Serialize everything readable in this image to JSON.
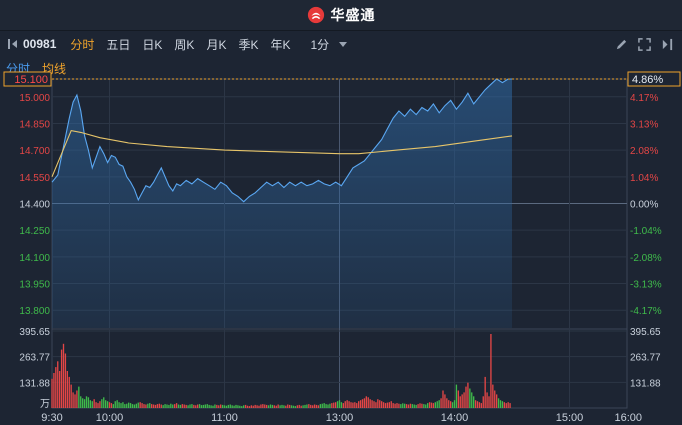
{
  "brand": {
    "name": "华盛通"
  },
  "toolbar": {
    "code": "00981",
    "tabs": [
      "分时",
      "五日",
      "日K",
      "周K",
      "月K",
      "季K",
      "年K"
    ],
    "active_tab": "分时",
    "period": "1分"
  },
  "subtabs": {
    "time_share": "分时",
    "avg_line": "均线"
  },
  "chart_data": {
    "type": "line",
    "prev_close": 14.4,
    "current_price": "15.100",
    "current_change": "4.86%",
    "price_ticks": [
      "15.000",
      "14.850",
      "14.700",
      "14.550",
      "14.400",
      "14.250",
      "14.100",
      "13.950",
      "13.800"
    ],
    "pct_ticks": [
      "4.17%",
      "3.13%",
      "2.08%",
      "1.04%",
      "0.00%",
      "-1.04%",
      "-2.08%",
      "-3.13%",
      "-4.17%"
    ],
    "time_labels": [
      "9:30",
      "10:00",
      "11:00",
      "13:00",
      "14:00",
      "15:00",
      "16:00"
    ],
    "volume_ticks": [
      "395.65",
      "263.77",
      "131.88"
    ],
    "volume_unit": "万",
    "series": [
      {
        "name": "分时",
        "color": "#5aa7f2",
        "points": [
          [
            0,
            14.52
          ],
          [
            3,
            14.56
          ],
          [
            6,
            14.72
          ],
          [
            9,
            14.88
          ],
          [
            11,
            14.97
          ],
          [
            13,
            15.01
          ],
          [
            15,
            14.92
          ],
          [
            17,
            14.78
          ],
          [
            19,
            14.7
          ],
          [
            21,
            14.6
          ],
          [
            23,
            14.66
          ],
          [
            25,
            14.72
          ],
          [
            27,
            14.68
          ],
          [
            29,
            14.63
          ],
          [
            31,
            14.67
          ],
          [
            33,
            14.66
          ],
          [
            35,
            14.62
          ],
          [
            37,
            14.61
          ],
          [
            39,
            14.55
          ],
          [
            41,
            14.52
          ],
          [
            43,
            14.48
          ],
          [
            45,
            14.42
          ],
          [
            47,
            14.46
          ],
          [
            49,
            14.5
          ],
          [
            51,
            14.49
          ],
          [
            53,
            14.52
          ],
          [
            55,
            14.56
          ],
          [
            57,
            14.6
          ],
          [
            59,
            14.55
          ],
          [
            61,
            14.5
          ],
          [
            63,
            14.47
          ],
          [
            65,
            14.51
          ],
          [
            67,
            14.5
          ],
          [
            70,
            14.53
          ],
          [
            73,
            14.51
          ],
          [
            76,
            14.54
          ],
          [
            79,
            14.52
          ],
          [
            82,
            14.5
          ],
          [
            85,
            14.48
          ],
          [
            88,
            14.52
          ],
          [
            91,
            14.5
          ],
          [
            94,
            14.46
          ],
          [
            97,
            14.44
          ],
          [
            100,
            14.41
          ],
          [
            103,
            14.44
          ],
          [
            106,
            14.46
          ],
          [
            109,
            14.49
          ],
          [
            112,
            14.52
          ],
          [
            115,
            14.5
          ],
          [
            118,
            14.52
          ],
          [
            121,
            14.49
          ],
          [
            124,
            14.52
          ],
          [
            127,
            14.5
          ],
          [
            130,
            14.52
          ],
          [
            133,
            14.5
          ],
          [
            136,
            14.51
          ],
          [
            139,
            14.53
          ],
          [
            142,
            14.51
          ],
          [
            145,
            14.5
          ],
          [
            148,
            14.52
          ],
          [
            151,
            14.5
          ],
          [
            154,
            14.55
          ],
          [
            157,
            14.6
          ],
          [
            160,
            14.62
          ],
          [
            163,
            14.64
          ],
          [
            166,
            14.68
          ],
          [
            169,
            14.72
          ],
          [
            172,
            14.76
          ],
          [
            175,
            14.82
          ],
          [
            178,
            14.88
          ],
          [
            181,
            14.92
          ],
          [
            184,
            14.89
          ],
          [
            187,
            14.93
          ],
          [
            190,
            14.9
          ],
          [
            193,
            14.94
          ],
          [
            196,
            14.92
          ],
          [
            199,
            14.96
          ],
          [
            202,
            14.91
          ],
          [
            205,
            14.95
          ],
          [
            208,
            14.98
          ],
          [
            211,
            14.93
          ],
          [
            214,
            14.97
          ],
          [
            217,
            15.02
          ],
          [
            220,
            14.96
          ],
          [
            223,
            15.0
          ],
          [
            226,
            15.04
          ],
          [
            229,
            15.07
          ],
          [
            232,
            15.1
          ],
          [
            235,
            15.08
          ],
          [
            238,
            15.1
          ],
          [
            240,
            15.1
          ]
        ]
      },
      {
        "name": "均线",
        "color": "#e7c56a",
        "points": [
          [
            0,
            14.55
          ],
          [
            5,
            14.68
          ],
          [
            10,
            14.81
          ],
          [
            15,
            14.8
          ],
          [
            25,
            14.77
          ],
          [
            40,
            14.74
          ],
          [
            60,
            14.72
          ],
          [
            90,
            14.7
          ],
          [
            120,
            14.69
          ],
          [
            150,
            14.68
          ],
          [
            160,
            14.68
          ],
          [
            180,
            14.7
          ],
          [
            200,
            14.72
          ],
          [
            220,
            14.75
          ],
          [
            240,
            14.78
          ]
        ]
      }
    ],
    "volume": {
      "max": 395.65,
      "values": [
        150,
        180,
        210,
        240,
        190,
        300,
        330,
        280,
        190,
        160,
        120,
        80,
        70,
        90,
        110,
        60,
        50,
        45,
        60,
        55,
        40,
        35,
        45,
        30,
        25,
        35,
        45,
        55,
        40,
        35,
        30,
        25,
        20,
        35,
        40,
        30,
        25,
        30,
        20,
        22,
        28,
        25,
        20,
        18,
        22,
        28,
        30,
        25,
        20,
        18,
        22,
        25,
        20,
        18,
        16,
        20,
        22,
        18,
        15,
        20,
        18,
        16,
        22,
        18,
        20,
        25,
        18,
        16,
        20,
        18,
        16,
        14,
        18,
        20,
        16,
        14,
        18,
        20,
        15,
        16,
        18,
        20,
        16,
        14,
        12,
        18,
        16,
        14,
        18,
        16,
        14,
        12,
        16,
        18,
        14,
        12,
        16,
        14,
        12,
        10,
        14,
        16,
        12,
        10,
        14,
        12,
        16,
        14,
        12,
        18,
        20,
        18,
        16,
        14,
        18,
        16,
        14,
        12,
        18,
        14,
        16,
        14,
        12,
        18,
        16,
        14,
        12,
        10,
        14,
        16,
        12,
        14,
        16,
        18,
        20,
        16,
        14,
        18,
        16,
        14,
        20,
        22,
        25,
        20,
        18,
        22,
        25,
        28,
        30,
        35,
        40,
        30,
        25,
        35,
        40,
        35,
        30,
        28,
        30,
        25,
        35,
        40,
        45,
        50,
        60,
        55,
        45,
        40,
        35,
        30,
        45,
        40,
        35,
        30,
        25,
        28,
        30,
        35,
        25,
        22,
        25,
        22,
        20,
        24,
        22,
        20,
        18,
        22,
        20,
        18,
        16,
        20,
        24,
        22,
        20,
        18,
        25,
        30,
        28,
        25,
        30,
        35,
        40,
        50,
        90,
        70,
        50,
        40,
        35,
        30,
        40,
        120,
        90,
        60,
        70,
        80,
        110,
        130,
        100,
        80,
        60,
        40,
        35,
        30,
        25,
        60,
        160,
        80,
        60,
        380,
        120,
        90,
        70,
        50,
        40,
        35,
        30,
        25,
        30,
        25
      ]
    }
  },
  "colors": {
    "up": "#e44646",
    "down": "#3fba4b",
    "price_line": "#5aa7f2",
    "avg_line": "#e7c56a",
    "accent": "#f0a32b"
  }
}
